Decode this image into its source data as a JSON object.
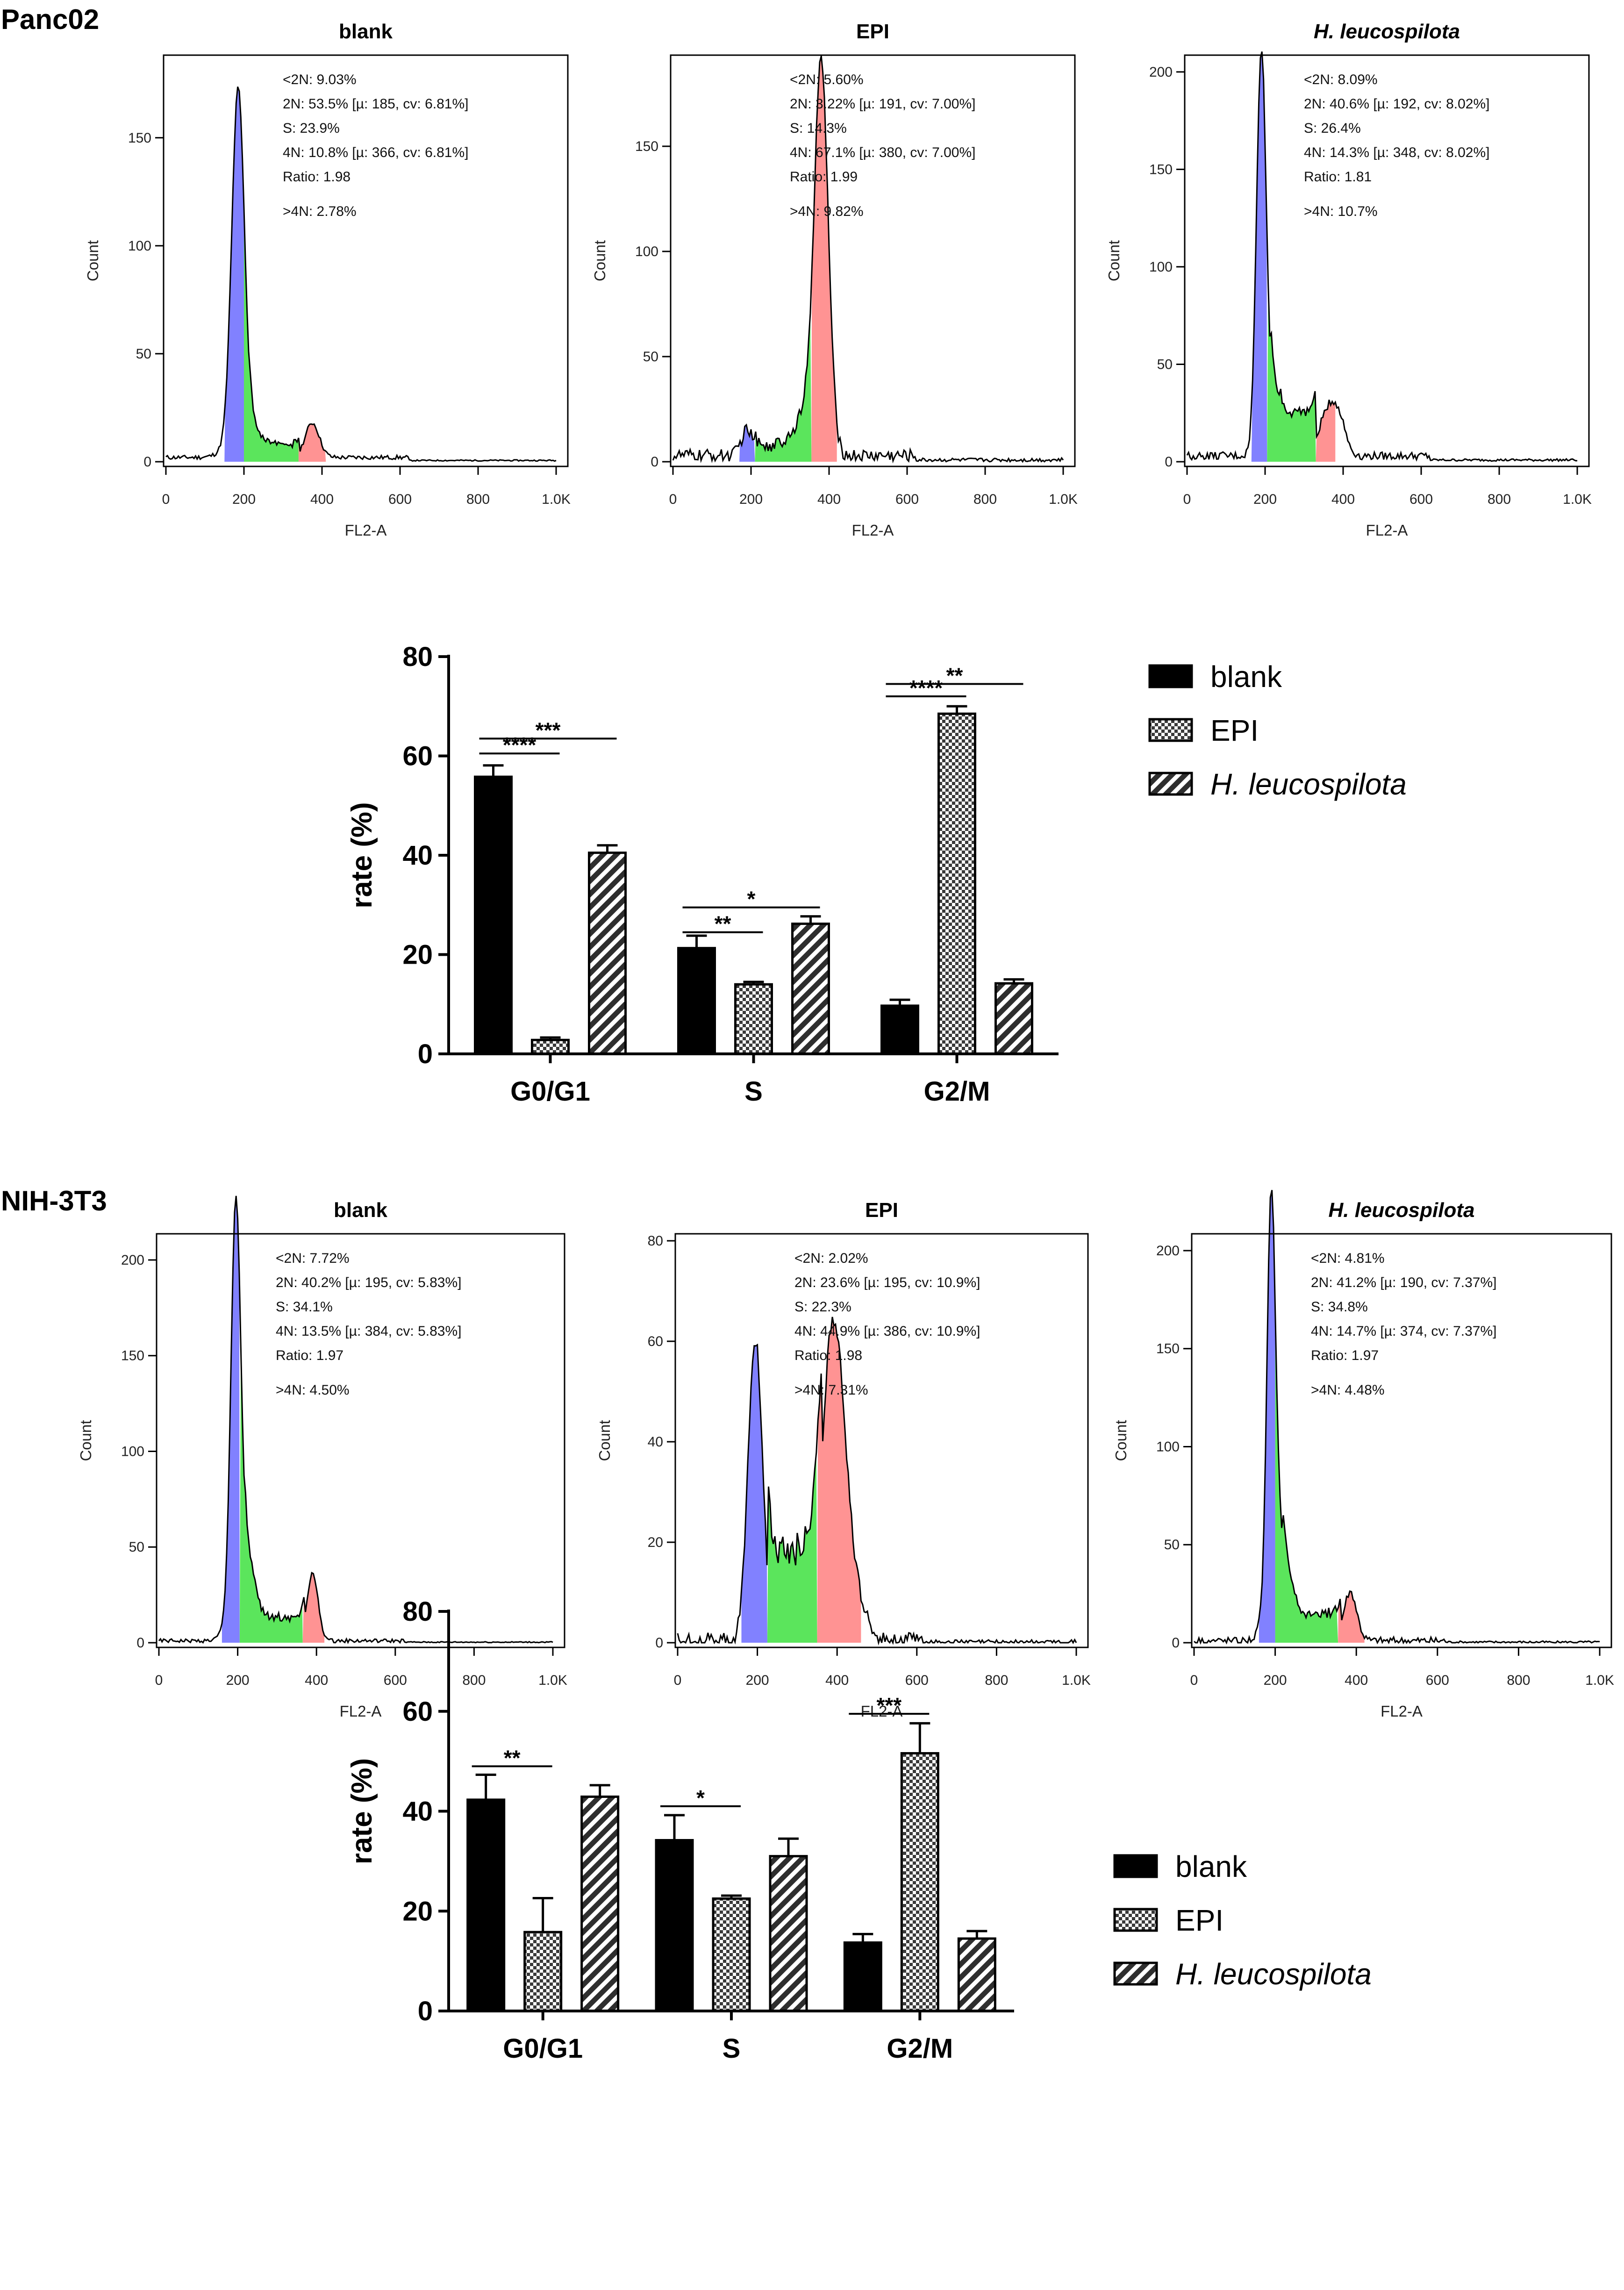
{
  "figure": {
    "panel_top": "Panc02",
    "panel_bottom": "NIH-3T3"
  },
  "chart_data": [
    {
      "id": "p1h1",
      "type": "histogram",
      "title": "blank",
      "title_italic": false,
      "xlabel": "FL2-A",
      "ylabel": "Count",
      "xlim": [
        0,
        1000
      ],
      "ylim": [
        0,
        185
      ],
      "xticks": [
        "0",
        "200",
        "400",
        "600",
        "800",
        "1.0K"
      ],
      "xtick_values": [
        0,
        200,
        400,
        600,
        800,
        1000
      ],
      "yticks": [
        0,
        50,
        100,
        150
      ],
      "stats": [
        "<2N: 9.03%",
        "2N: 53.5%   [µ: 185, cv: 6.81%]",
        "S: 23.9%",
        "4N: 10.8%   [µ: 366, cv: 6.81%]",
        "Ratio: 1.98",
        ">4N: 2.78%"
      ],
      "profile": {
        "baseline": 2,
        "noise": 1,
        "peaks": [
          [
            185,
            160,
            16
          ],
          [
            195,
            12,
            34
          ],
          [
            375,
            16,
            18
          ]
        ],
        "plateau": [
          215,
          340,
          6
        ]
      },
      "regions": {
        "blue": [
          150,
          200
        ],
        "green": [
          200,
          340
        ],
        "red": [
          340,
          410
        ]
      }
    },
    {
      "id": "p1h2",
      "type": "histogram",
      "title": "EPI",
      "title_italic": false,
      "xlabel": "FL2-A",
      "ylabel": "Count",
      "xlim": [
        0,
        1000
      ],
      "ylim": [
        0,
        190
      ],
      "xticks": [
        "0",
        "200",
        "400",
        "600",
        "800",
        "1.0K"
      ],
      "xtick_values": [
        0,
        200,
        400,
        600,
        800,
        1000
      ],
      "yticks": [
        0,
        50,
        100,
        150
      ],
      "stats": [
        "<2N: 5.60%",
        "2N: 3.22%   [µ: 191, cv: 7.00%]",
        "S: 14.3%",
        "4N: 67.1%   [µ: 380, cv: 7.00%]",
        "Ratio: 1.99",
        ">4N: 9.82%"
      ],
      "profile": {
        "baseline": 3,
        "noise": 3,
        "peaks": [
          [
            190,
            12,
            15
          ],
          [
            380,
            180,
            18
          ],
          [
            345,
            16,
            30
          ]
        ],
        "plateau": [
          210,
          340,
          5
        ]
      },
      "regions": {
        "blue": [
          170,
          210
        ],
        "green": [
          210,
          355
        ],
        "red": [
          355,
          420
        ]
      }
    },
    {
      "id": "p1h3",
      "type": "histogram",
      "title": "H. leucospilota",
      "title_italic": true,
      "xlabel": "FL2-A",
      "ylabel": "Count",
      "xlim": [
        0,
        1000
      ],
      "ylim": [
        0,
        205
      ],
      "xticks": [
        "0",
        "200",
        "400",
        "600",
        "800",
        "1.0K"
      ],
      "xtick_values": [
        0,
        200,
        400,
        600,
        800,
        1000
      ],
      "yticks": [
        0,
        50,
        100,
        150,
        200
      ],
      "stats": [
        "<2N: 8.09%",
        "2N: 40.6%   [µ: 192, cv: 8.02%]",
        "S: 26.4%",
        "4N: 14.3%   [µ: 348, cv: 8.02%]",
        "Ratio: 1.81",
        ">4N: 10.7%"
      ],
      "profile": {
        "baseline": 3,
        "noise": 2,
        "peaks": [
          [
            190,
            195,
            12
          ],
          [
            210,
            25,
            20
          ],
          [
            360,
            22,
            22
          ],
          [
            390,
            15,
            18
          ]
        ],
        "plateau": [
          215,
          330,
          22
        ]
      },
      "regions": {
        "blue": [
          165,
          205
        ],
        "green": [
          205,
          330
        ],
        "red": [
          330,
          380
        ]
      }
    },
    {
      "id": "p1bar",
      "type": "bar",
      "categories": [
        "G0/G1",
        "S",
        "G2/M"
      ],
      "series": [
        {
          "name": "blank",
          "values": [
            55.8,
            21.3,
            9.7
          ],
          "errors": [
            2.3,
            2.5,
            1.2
          ]
        },
        {
          "name": "EPI",
          "values": [
            2.8,
            14.0,
            68.5
          ],
          "errors": [
            0.5,
            0.5,
            1.5
          ]
        },
        {
          "name": "H. leucospilota",
          "values": [
            40.5,
            26.2,
            14.2
          ],
          "errors": [
            1.5,
            1.5,
            0.8
          ]
        }
      ],
      "title": "",
      "xlabel": "",
      "ylabel": "rate (%)",
      "ylim": [
        0,
        80
      ],
      "yticks": [
        0,
        20,
        40,
        60,
        80
      ],
      "significance": [
        {
          "group": 0,
          "from": 0,
          "to": 1,
          "label": "****",
          "y": 60.5
        },
        {
          "group": 0,
          "from": 0,
          "to": 2,
          "label": "***",
          "y": 63.5
        },
        {
          "group": 1,
          "from": 0,
          "to": 1,
          "label": "**",
          "y": 24.5
        },
        {
          "group": 1,
          "from": 0,
          "to": 2,
          "label": "*",
          "y": 29.5
        },
        {
          "group": 2,
          "from": 0,
          "to": 1,
          "label": "****",
          "y": 72.0
        },
        {
          "group": 2,
          "from": 0,
          "to": 2,
          "label": "**",
          "y": 74.5
        }
      ],
      "legend": [
        "blank",
        "EPI",
        "H. leucospilota"
      ],
      "legend_position": "right"
    },
    {
      "id": "p2h1",
      "type": "histogram",
      "title": "blank",
      "title_italic": false,
      "xlabel": "FL2-A",
      "ylabel": "Count",
      "xlim": [
        0,
        1000
      ],
      "ylim": [
        0,
        210
      ],
      "xticks": [
        "0",
        "200",
        "400",
        "600",
        "800",
        "1.0K"
      ],
      "xtick_values": [
        0,
        200,
        400,
        600,
        800,
        1000
      ],
      "yticks": [
        0,
        50,
        100,
        150,
        200
      ],
      "stats": [
        "<2N: 7.72%",
        "2N: 40.2%   [µ: 195, cv: 5.83%]",
        "S: 34.1%",
        "4N: 13.5%   [µ: 384, cv: 5.83%]",
        "Ratio: 1.97",
        ">4N: 4.50%"
      ],
      "profile": {
        "baseline": 1,
        "noise": 1,
        "peaks": [
          [
            195,
            195,
            12
          ],
          [
            210,
            45,
            25
          ],
          [
            390,
            35,
            14
          ]
        ],
        "plateau": [
          220,
          370,
          12
        ]
      },
      "regions": {
        "blue": [
          160,
          205
        ],
        "green": [
          205,
          365
        ],
        "red": [
          365,
          420
        ]
      }
    },
    {
      "id": "p2h2",
      "type": "histogram",
      "title": "EPI",
      "title_italic": false,
      "xlabel": "FL2-A",
      "ylabel": "Count",
      "xlim": [
        0,
        1000
      ],
      "ylim": [
        0,
        80
      ],
      "xticks": [
        "0",
        "200",
        "400",
        "600",
        "800",
        "1.0K"
      ],
      "xtick_values": [
        0,
        200,
        400,
        600,
        800,
        1000
      ],
      "yticks": [
        0,
        20,
        40,
        60,
        80
      ],
      "stats": [
        "<2N: 2.02%",
        "2N: 23.6%   [µ: 195, cv: 10.9%]",
        "S: 22.3%",
        "4N: 44.9%   [µ: 386, cv: 10.9%]",
        "Ratio: 1.98",
        ">4N: 7.31%"
      ],
      "profile": {
        "baseline": 0.5,
        "noise": 1.5,
        "peaks": [
          [
            195,
            60,
            18
          ],
          [
            390,
            62,
            28
          ],
          [
            440,
            8,
            30
          ]
        ],
        "plateau": [
          225,
          360,
          18
        ]
      },
      "regions": {
        "blue": [
          160,
          225
        ],
        "green": [
          225,
          350
        ],
        "red": [
          350,
          460
        ]
      }
    },
    {
      "id": "p2h3",
      "type": "histogram",
      "title": "H. leucospilota",
      "title_italic": true,
      "xlabel": "FL2-A",
      "ylabel": "Count",
      "xlim": [
        0,
        1000
      ],
      "ylim": [
        0,
        205
      ],
      "xticks": [
        "0",
        "200",
        "400",
        "600",
        "800",
        "1.0K"
      ],
      "xtick_values": [
        0,
        200,
        400,
        600,
        800,
        1000
      ],
      "yticks": [
        0,
        50,
        100,
        150,
        200
      ],
      "stats": [
        "<2N: 4.81%",
        "2N: 41.2%   [µ: 190, cv: 7.37%]",
        "S: 34.8%",
        "4N: 14.7%   [µ: 374, cv: 7.37%]",
        "Ratio: 1.97",
        ">4N: 4.48%"
      ],
      "profile": {
        "baseline": 1,
        "noise": 2,
        "peaks": [
          [
            190,
            185,
            10
          ],
          [
            205,
            60,
            22
          ],
          [
            385,
            25,
            16
          ]
        ],
        "plateau": [
          220,
          360,
          14
        ]
      },
      "regions": {
        "blue": [
          160,
          200
        ],
        "green": [
          200,
          355
        ],
        "red": [
          355,
          420
        ]
      }
    },
    {
      "id": "p2bar",
      "type": "bar",
      "categories": [
        "G0/G1",
        "S",
        "G2/M"
      ],
      "series": [
        {
          "name": "blank",
          "values": [
            42.3,
            34.2,
            13.7
          ],
          "errors": [
            5.0,
            5.0,
            1.7
          ]
        },
        {
          "name": "EPI",
          "values": [
            15.8,
            22.5,
            51.6
          ],
          "errors": [
            6.8,
            0.6,
            6.0
          ]
        },
        {
          "name": "H. leucospilota",
          "values": [
            42.9,
            31.0,
            14.5
          ],
          "errors": [
            2.3,
            3.5,
            1.5
          ]
        }
      ],
      "title": "",
      "xlabel": "",
      "ylabel": "rate (%)",
      "ylim": [
        0,
        80
      ],
      "yticks": [
        0,
        20,
        40,
        60,
        80
      ],
      "significance": [
        {
          "group": 0,
          "from": 0,
          "to": 1,
          "label": "**",
          "y": 49.0
        },
        {
          "group": 1,
          "from": 0,
          "to": 1,
          "label": "*",
          "y": 41.0
        },
        {
          "group": 2,
          "from": 0,
          "to": 1,
          "label": "***",
          "y": 59.5
        }
      ],
      "legend": [
        "blank",
        "EPI",
        "H. leucospilota"
      ],
      "legend_position": "right"
    }
  ]
}
